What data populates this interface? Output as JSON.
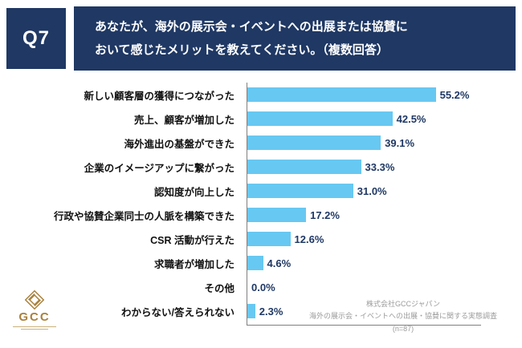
{
  "header": {
    "question_no": "Q7",
    "title_lines": [
      "あなたが、海外の展示会・イベントへの出展または協賛に",
      "おいて感じたメリットを教えてください。（複数回答）"
    ]
  },
  "chart_data": {
    "type": "bar",
    "orientation": "horizontal",
    "title": "",
    "categories": [
      "新しい顧客層の獲得につながった",
      "売上、顧客が増加した",
      "海外進出の基盤ができた",
      "企業のイメージアップに繋がった",
      "認知度が向上した",
      "行政や協賛企業同士の人脈を構築できた",
      "CSR 活動が行えた",
      "求職者が増加した",
      "その他",
      "わからない/答えられない"
    ],
    "values": [
      55.2,
      42.5,
      39.1,
      33.3,
      31.0,
      17.2,
      12.6,
      4.6,
      0.0,
      2.3
    ],
    "value_labels": [
      "55.2%",
      "42.5%",
      "39.1%",
      "33.3%",
      "31.0%",
      "17.2%",
      "12.6%",
      "4.6%",
      "0.0%",
      "2.3%"
    ],
    "xlim": [
      0,
      60
    ],
    "grid": false,
    "legend": false,
    "bar_color": "#67C8F2"
  },
  "footer": {
    "logo_text": "GCC",
    "source_lines": [
      "株式会社GCCジャパン",
      "海外の展示会・イベントへの出展・協賛に関する実態調査",
      "(n=87)"
    ]
  },
  "colors": {
    "navy": "#1F3864",
    "bar_blue": "#67C8F2",
    "value_text": "#1F3864",
    "logo_gold": "#A9813C"
  }
}
